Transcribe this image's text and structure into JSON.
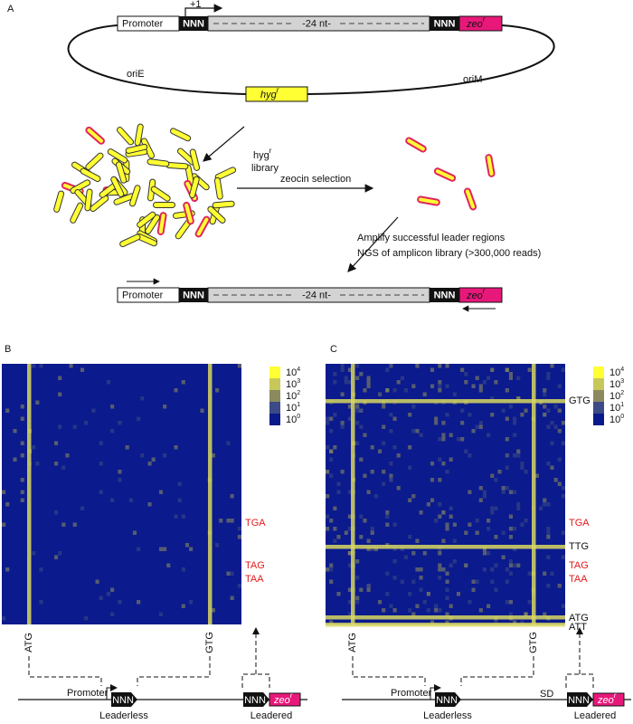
{
  "panels": {
    "a": "A",
    "b": "B",
    "c": "C"
  },
  "construct": {
    "promoter": "Promoter",
    "nnn": "NNN",
    "spacer": "-24 nt-",
    "marker": {
      "name": "zeo",
      "sup": "r"
    },
    "start": "+1"
  },
  "plasmid": {
    "ori_left": "oriE",
    "ori_right": "oriM",
    "marker": {
      "name": "hyg",
      "sup": "r"
    }
  },
  "steps": {
    "library": {
      "name": "hyg",
      "sup": "r",
      "line2": "library"
    },
    "selection": "zeocin selection",
    "amplify": "Amplify successful leader regions",
    "ngs": "NGS of amplicon library (>300,000 reads)"
  },
  "colorbar": [
    {
      "base": "10",
      "exp": "4"
    },
    {
      "base": "10",
      "exp": "3"
    },
    {
      "base": "10",
      "exp": "2"
    },
    {
      "base": "10",
      "exp": "1"
    },
    {
      "base": "10",
      "exp": "0"
    }
  ],
  "heatmaps": [
    {
      "rows": [
        {
          "label": "TGA",
          "color": "#e31a1c"
        },
        {
          "label": "TAG",
          "color": "#e31a1c"
        },
        {
          "label": "TAA",
          "color": "#e31a1c"
        }
      ],
      "columns": [
        "ATG",
        "GTG"
      ],
      "promoter": "Promoter",
      "nnn": "NNN",
      "marker": {
        "name": "zeo",
        "sup": "r"
      },
      "leaderless": "Leaderless",
      "leadered": "Leadered"
    },
    {
      "rows": [
        {
          "label": "GTG",
          "color": "#111111"
        },
        {
          "label": "TGA",
          "color": "#e31a1c"
        },
        {
          "label": "TTG",
          "color": "#111111"
        },
        {
          "label": "TAG",
          "color": "#e31a1c"
        },
        {
          "label": "TAA",
          "color": "#e31a1c"
        },
        {
          "label": "ATG",
          "color": "#111111"
        },
        {
          "label": "ATT",
          "color": "#111111"
        }
      ],
      "columns": [
        "ATG",
        "GTG"
      ],
      "promoter": "Promoter",
      "nnn": "NNN",
      "marker": {
        "name": "zeo",
        "sup": "r"
      },
      "sd": "SD",
      "leaderless": "Leaderless",
      "leadered": "Leadered"
    }
  ]
}
